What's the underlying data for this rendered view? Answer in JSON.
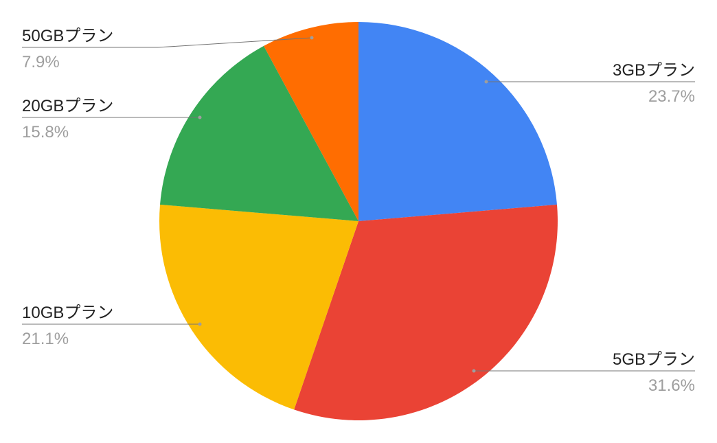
{
  "chart_data": {
    "type": "pie",
    "title": "",
    "start_angle": "top",
    "direction": "clockwise",
    "legend": "labels with leader lines",
    "slices": [
      {
        "label": "3GBプラン",
        "value": 23.7,
        "percent_label": "23.7%",
        "color": "#4285F4"
      },
      {
        "label": "5GBプラン",
        "value": 31.6,
        "percent_label": "31.6%",
        "color": "#EA4335"
      },
      {
        "label": "10GBプラン",
        "value": 21.1,
        "percent_label": "21.1%",
        "color": "#FBBC04"
      },
      {
        "label": "20GBプラン",
        "value": 15.8,
        "percent_label": "15.8%",
        "color": "#34A853"
      },
      {
        "label": "50GBプラン",
        "value": 7.9,
        "percent_label": "7.9%",
        "color": "#FF6D01"
      }
    ]
  }
}
